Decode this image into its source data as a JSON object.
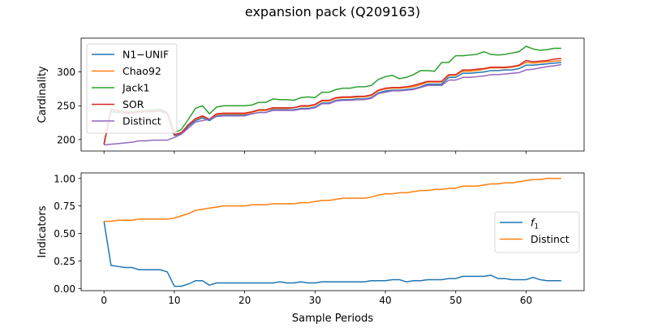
{
  "figure": {
    "title": "expansion pack (Q209163)",
    "xlabel": "Sample Periods"
  },
  "chart_data": [
    {
      "type": "line",
      "ylabel": "Cardinality",
      "xlim": [
        -3.25,
        68.25
      ],
      "ylim": [
        183,
        350
      ],
      "xticks": [
        0,
        10,
        20,
        30,
        40,
        50,
        60
      ],
      "yticks": [
        200,
        250,
        300
      ],
      "show_xticklabels": false,
      "legend_position": "upper left",
      "x": [
        0,
        1,
        2,
        3,
        4,
        5,
        6,
        7,
        8,
        9,
        10,
        11,
        12,
        13,
        14,
        15,
        16,
        17,
        18,
        19,
        20,
        21,
        22,
        23,
        24,
        25,
        26,
        27,
        28,
        29,
        30,
        31,
        32,
        33,
        34,
        35,
        36,
        37,
        38,
        39,
        40,
        41,
        42,
        43,
        44,
        45,
        46,
        47,
        48,
        49,
        50,
        51,
        52,
        53,
        54,
        55,
        56,
        57,
        58,
        59,
        60,
        61,
        62,
        63,
        64,
        65
      ],
      "series": [
        {
          "name": "N1−UNIF",
          "color": "#1f77b4",
          "values": [
            193,
            241,
            240,
            239,
            239,
            240,
            241,
            241,
            242,
            238,
            206,
            209,
            220,
            228,
            232,
            228,
            235,
            236,
            236,
            236,
            236,
            238,
            240,
            240,
            244,
            244,
            244,
            244,
            246,
            246,
            248,
            254,
            254,
            258,
            259,
            259,
            260,
            260,
            262,
            269,
            272,
            273,
            273,
            274,
            275,
            278,
            282,
            282,
            282,
            292,
            292,
            298,
            298,
            299,
            300,
            302,
            302,
            303,
            303,
            305,
            310,
            310,
            311,
            312,
            313,
            314
          ]
        },
        {
          "name": "Chao92",
          "color": "#ff7f0e",
          "values": [
            193,
            245,
            242,
            240,
            240,
            241,
            242,
            242,
            243,
            239,
            207,
            210,
            222,
            230,
            234,
            230,
            237,
            238,
            238,
            238,
            238,
            240,
            243,
            243,
            246,
            246,
            246,
            247,
            249,
            249,
            251,
            257,
            257,
            261,
            262,
            262,
            263,
            263,
            265,
            272,
            275,
            276,
            276,
            277,
            278,
            281,
            285,
            285,
            285,
            295,
            295,
            301,
            301,
            302,
            304,
            306,
            306,
            306,
            307,
            309,
            314,
            313,
            314,
            315,
            316,
            317
          ]
        },
        {
          "name": "Jack1",
          "color": "#2ca02c",
          "values": [
            193,
            245,
            243,
            241,
            241,
            242,
            243,
            244,
            245,
            240,
            210,
            215,
            230,
            246,
            250,
            238,
            248,
            250,
            250,
            250,
            250,
            251,
            255,
            255,
            260,
            259,
            259,
            258,
            262,
            263,
            262,
            270,
            270,
            274,
            276,
            276,
            278,
            278,
            280,
            289,
            293,
            295,
            290,
            292,
            296,
            302,
            302,
            301,
            314,
            314,
            324,
            324,
            325,
            326,
            330,
            326,
            325,
            326,
            328,
            330,
            338,
            334,
            332,
            333,
            335,
            335
          ]
        },
        {
          "name": "SOR",
          "color": "#d62728",
          "values": [
            193,
            244,
            242,
            240,
            240,
            241,
            242,
            242,
            243,
            239,
            207,
            210,
            222,
            231,
            235,
            230,
            238,
            239,
            239,
            239,
            239,
            241,
            244,
            244,
            247,
            247,
            247,
            247,
            250,
            250,
            252,
            258,
            258,
            262,
            263,
            263,
            264,
            264,
            266,
            273,
            276,
            277,
            277,
            278,
            280,
            283,
            286,
            286,
            286,
            296,
            296,
            303,
            303,
            304,
            305,
            307,
            307,
            307,
            308,
            310,
            317,
            315,
            316,
            317,
            319,
            320
          ]
        },
        {
          "name": "Distinct",
          "color": "#9467bd",
          "values": [
            192,
            193,
            194,
            195,
            196,
            198,
            198,
            199,
            199,
            199,
            203,
            208,
            217,
            226,
            228,
            230,
            234,
            235,
            235,
            235,
            235,
            238,
            240,
            240,
            243,
            243,
            243,
            243,
            245,
            245,
            247,
            253,
            253,
            257,
            258,
            258,
            259,
            259,
            261,
            268,
            270,
            272,
            272,
            273,
            274,
            277,
            280,
            280,
            280,
            288,
            288,
            292,
            292,
            293,
            294,
            296,
            296,
            297,
            298,
            299,
            303,
            304,
            306,
            308,
            309,
            311
          ]
        }
      ]
    },
    {
      "type": "line",
      "ylabel": "Indicators",
      "xlim": [
        -3.25,
        68.25
      ],
      "ylim": [
        -0.02,
        1.05
      ],
      "xticks": [
        0,
        10,
        20,
        30,
        40,
        50,
        60
      ],
      "yticks": [
        0.0,
        0.25,
        0.5,
        0.75,
        1.0
      ],
      "xticklabels": [
        "0",
        "10",
        "20",
        "30",
        "40",
        "50",
        "60"
      ],
      "yticklabels": [
        "0.00",
        "0.25",
        "0.50",
        "0.75",
        "1.00"
      ],
      "legend_position": "center right",
      "x": [
        0,
        1,
        2,
        3,
        4,
        5,
        6,
        7,
        8,
        9,
        10,
        11,
        12,
        13,
        14,
        15,
        16,
        17,
        18,
        19,
        20,
        21,
        22,
        23,
        24,
        25,
        26,
        27,
        28,
        29,
        30,
        31,
        32,
        33,
        34,
        35,
        36,
        37,
        38,
        39,
        40,
        41,
        42,
        43,
        44,
        45,
        46,
        47,
        48,
        49,
        50,
        51,
        52,
        53,
        54,
        55,
        56,
        57,
        58,
        59,
        60,
        61,
        62,
        63,
        64,
        65
      ],
      "series": [
        {
          "name": "f1",
          "label_main": "f",
          "label_sub": "1",
          "color": "#1f77b4",
          "values": [
            0.61,
            0.21,
            0.2,
            0.19,
            0.19,
            0.17,
            0.17,
            0.17,
            0.17,
            0.15,
            0.02,
            0.02,
            0.04,
            0.07,
            0.07,
            0.03,
            0.05,
            0.05,
            0.05,
            0.05,
            0.05,
            0.05,
            0.05,
            0.05,
            0.05,
            0.06,
            0.05,
            0.05,
            0.06,
            0.05,
            0.05,
            0.06,
            0.06,
            0.06,
            0.06,
            0.06,
            0.06,
            0.06,
            0.07,
            0.07,
            0.07,
            0.08,
            0.08,
            0.06,
            0.07,
            0.07,
            0.08,
            0.08,
            0.08,
            0.09,
            0.09,
            0.11,
            0.11,
            0.11,
            0.11,
            0.12,
            0.09,
            0.09,
            0.08,
            0.08,
            0.08,
            0.1,
            0.08,
            0.07,
            0.07,
            0.07
          ]
        },
        {
          "name": "Distinct",
          "color": "#ff7f0e",
          "values": [
            0.61,
            0.61,
            0.62,
            0.62,
            0.62,
            0.63,
            0.63,
            0.63,
            0.63,
            0.63,
            0.64,
            0.66,
            0.68,
            0.71,
            0.72,
            0.73,
            0.74,
            0.75,
            0.75,
            0.75,
            0.75,
            0.76,
            0.76,
            0.76,
            0.77,
            0.77,
            0.77,
            0.77,
            0.78,
            0.78,
            0.79,
            0.8,
            0.8,
            0.81,
            0.82,
            0.82,
            0.82,
            0.82,
            0.83,
            0.85,
            0.86,
            0.86,
            0.87,
            0.87,
            0.88,
            0.89,
            0.89,
            0.9,
            0.9,
            0.91,
            0.91,
            0.93,
            0.93,
            0.93,
            0.94,
            0.95,
            0.95,
            0.96,
            0.96,
            0.97,
            0.98,
            0.99,
            0.99,
            1.0,
            1.0,
            1.0
          ]
        }
      ]
    }
  ]
}
